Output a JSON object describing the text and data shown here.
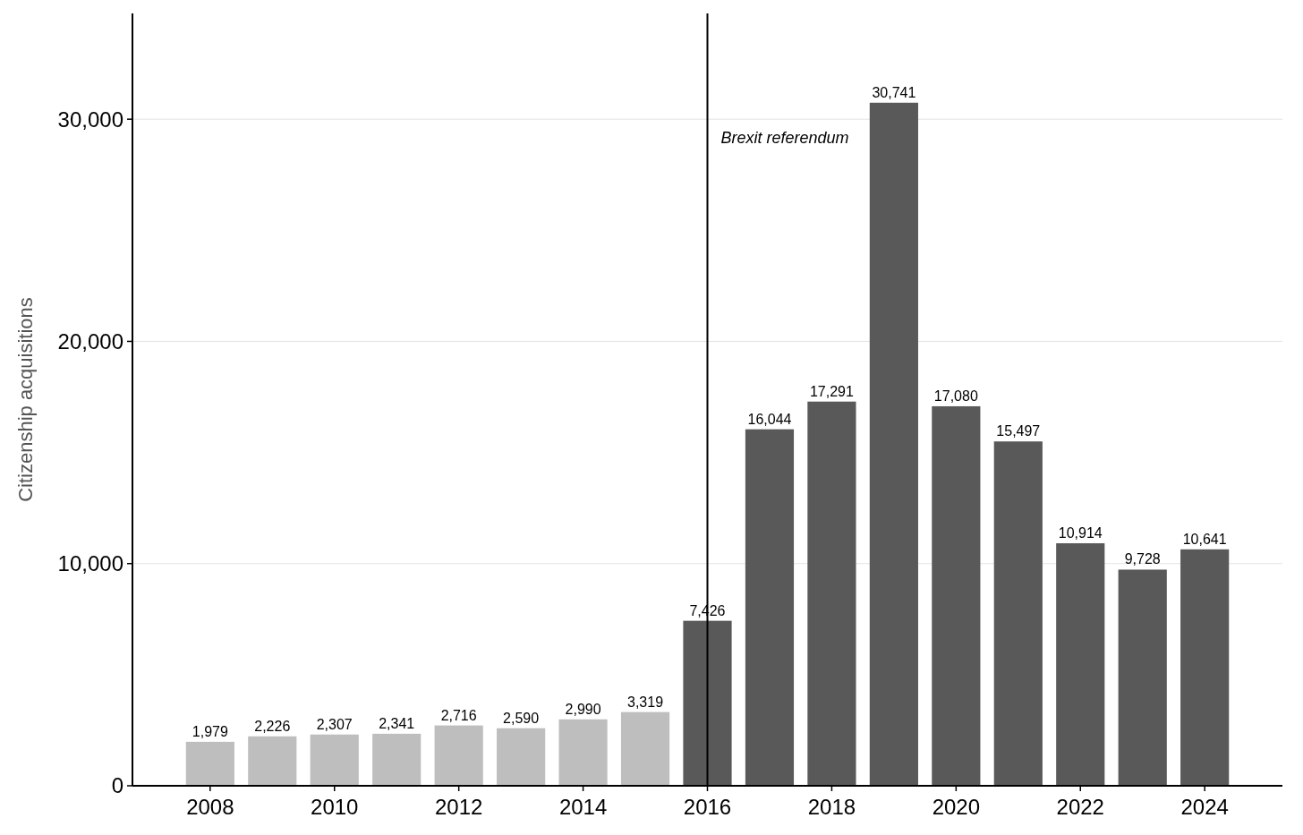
{
  "chart_data": {
    "type": "bar",
    "ylabel": "Citizenship acquisitions",
    "x": [
      2008,
      2009,
      2010,
      2011,
      2012,
      2013,
      2014,
      2015,
      2016,
      2017,
      2018,
      2019,
      2020,
      2021,
      2022,
      2023,
      2024
    ],
    "values": [
      1979,
      2226,
      2307,
      2341,
      2716,
      2590,
      2990,
      3319,
      7426,
      16044,
      17291,
      30741,
      17080,
      15497,
      10914,
      9728,
      10641
    ],
    "colors": [
      "#bebebe",
      "#bebebe",
      "#bebebe",
      "#bebebe",
      "#bebebe",
      "#bebebe",
      "#bebebe",
      "#bebebe",
      "#595959",
      "#595959",
      "#595959",
      "#595959",
      "#595959",
      "#595959",
      "#595959",
      "#595959",
      "#595959"
    ],
    "xlim": [
      2006.75,
      2025.25
    ],
    "xticks": [
      2008,
      2010,
      2012,
      2014,
      2016,
      2018,
      2020,
      2022,
      2024
    ],
    "ylim": [
      0,
      34760
    ],
    "yticks": [
      0,
      {
        "value": 10000,
        "label": "10,000"
      },
      {
        "value": 20000,
        "label": "20,000"
      },
      {
        "value": 30000,
        "label": "30,000"
      }
    ],
    "value_labels": [
      "1,979",
      "2,226",
      "2,307",
      "2,341",
      "2,716",
      "2,590",
      "2,990",
      "3,319",
      "7,426",
      "16,044",
      "17,291",
      "30,741",
      "17,080",
      "15,497",
      "10,914",
      "9,728",
      "10,641"
    ],
    "grid": "y",
    "ref_lines": [
      {
        "axis": "x",
        "value": 2016,
        "label": "Brexit referendum",
        "color": "#000000"
      }
    ]
  }
}
